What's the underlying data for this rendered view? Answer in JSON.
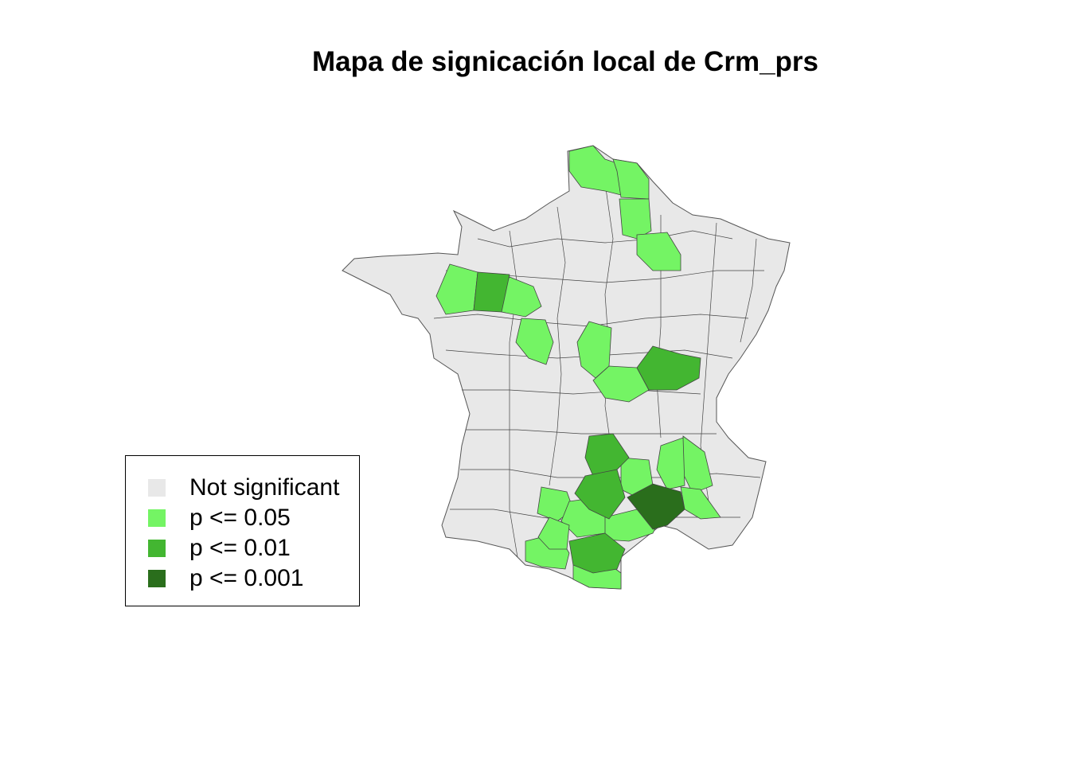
{
  "title": "Mapa de signicación local de Crm_prs",
  "legend": {
    "items": [
      {
        "label": "Not significant",
        "color": "#e8e8e8"
      },
      {
        "label": "p <= 0.05",
        "color": "#74f464"
      },
      {
        "label": "p <= 0.01",
        "color": "#43b631"
      },
      {
        "label": "p <= 0.001",
        "color": "#2a6e1c"
      }
    ]
  },
  "map": {
    "region": "France (departments)",
    "base_color": "#e8e8e8",
    "highlighted_departments": [
      {
        "level": "p <= 0.05",
        "color": "#74f464"
      },
      {
        "level": "p <= 0.01",
        "color": "#43b631"
      },
      {
        "level": "p <= 0.001",
        "color": "#2a6e1c"
      }
    ]
  }
}
